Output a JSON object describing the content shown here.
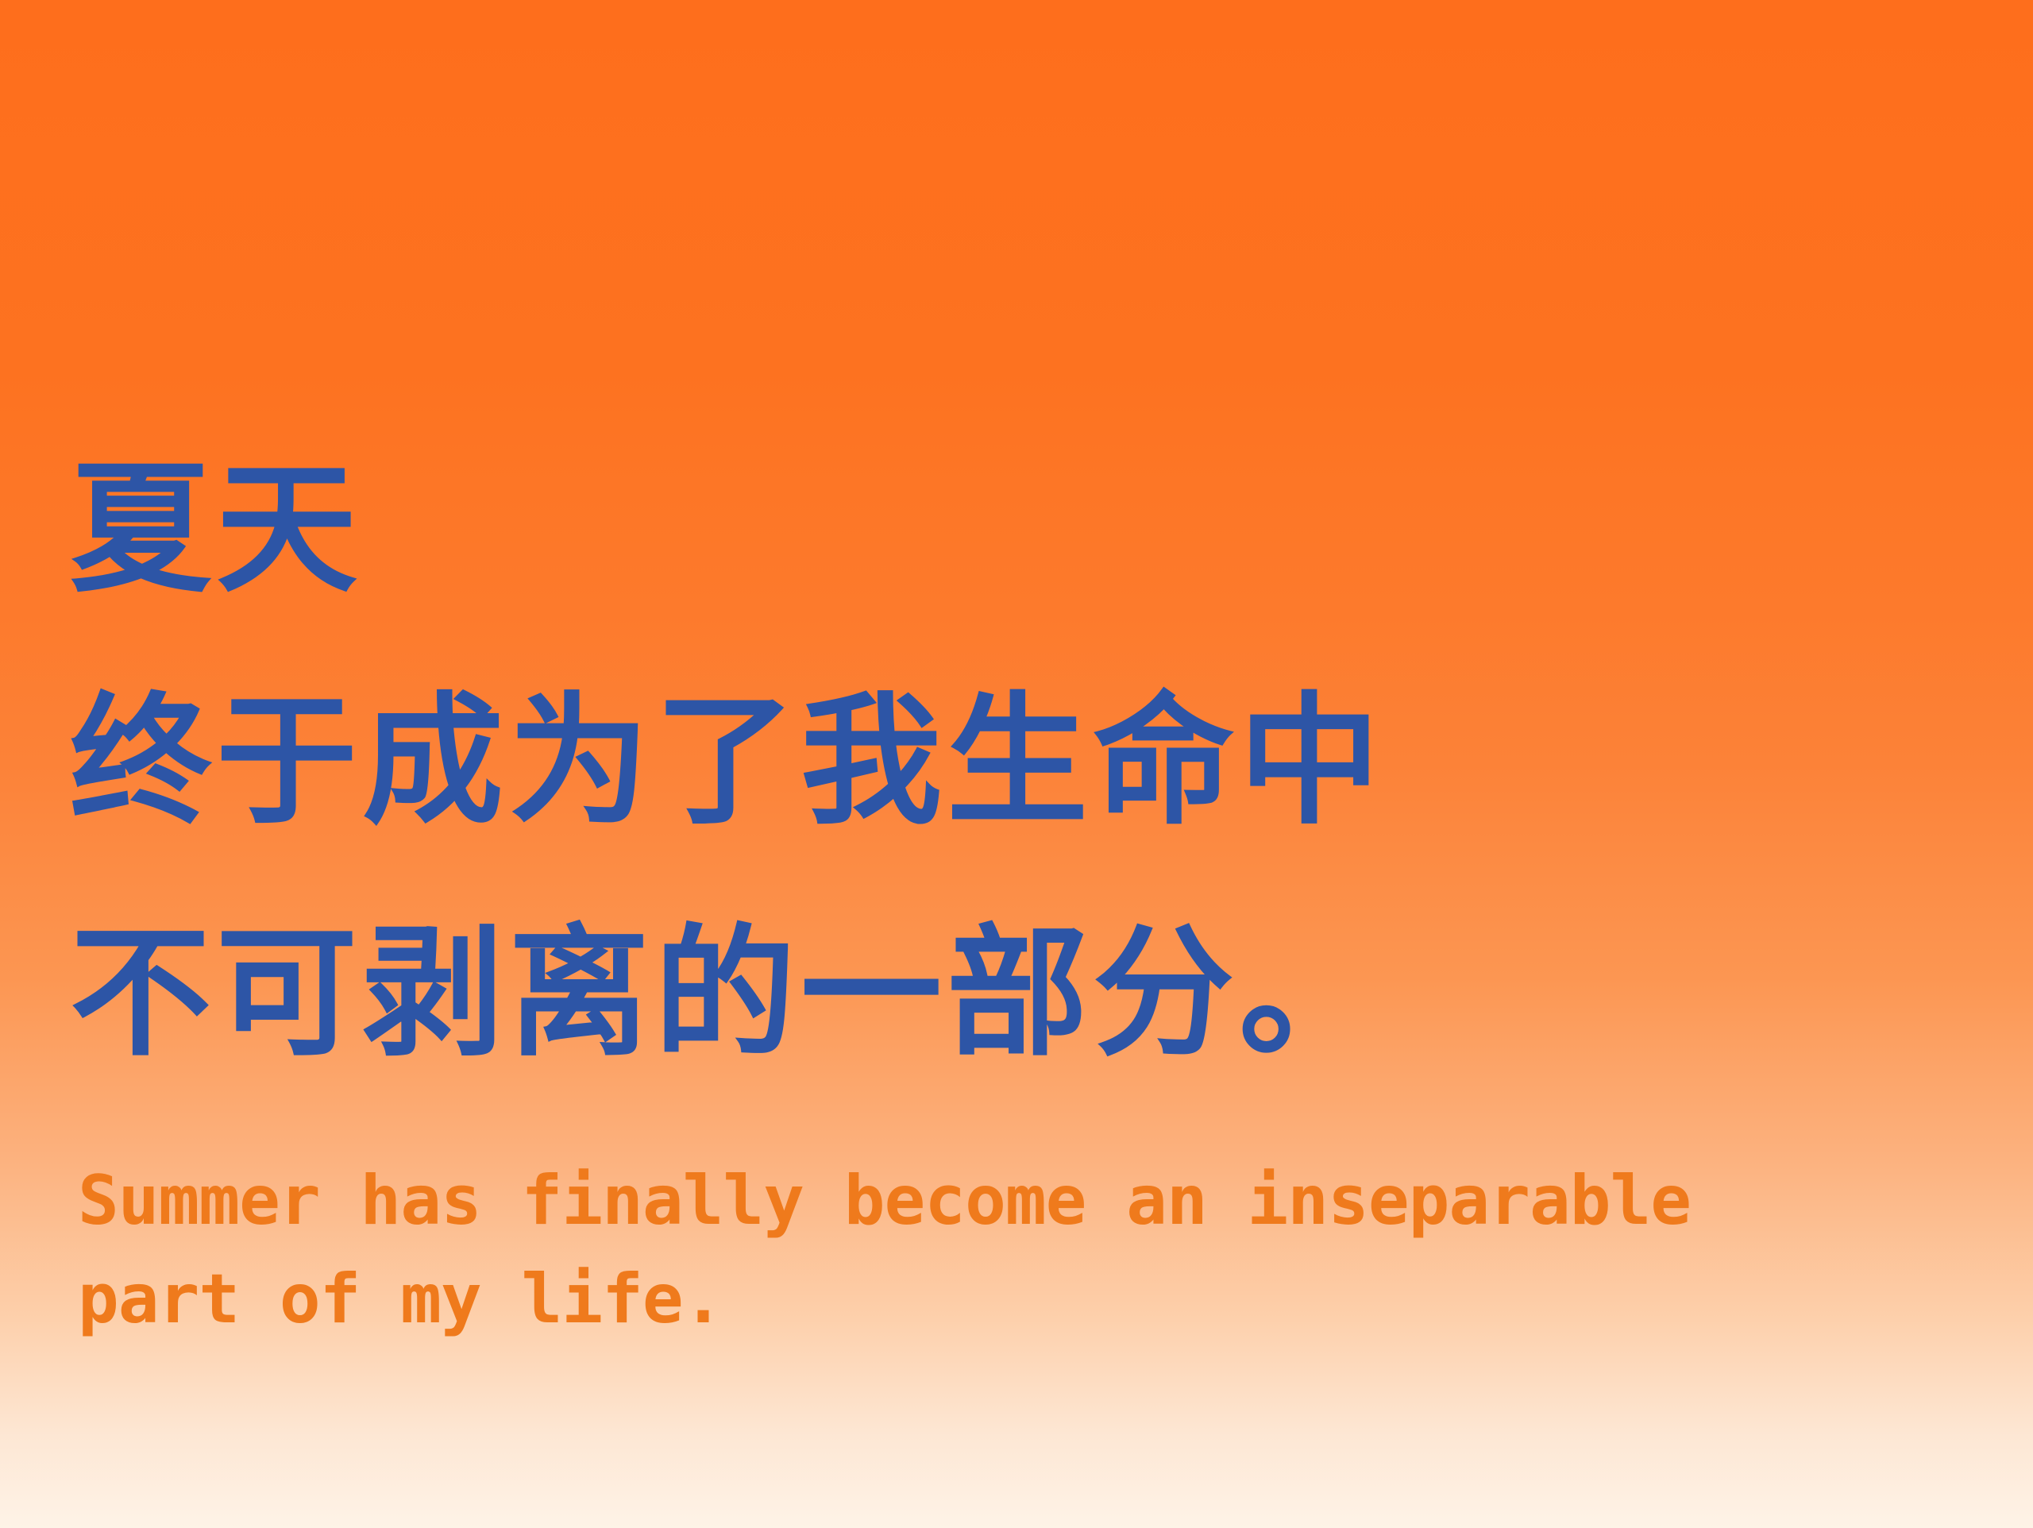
{
  "poster": {
    "chinese_lines": [
      "夏天",
      "终于成为了我生命中",
      "不可剥离的一部分。"
    ],
    "english_lines": [
      "Summer has finally become an inseparable",
      "part of my life."
    ]
  },
  "colors": {
    "background_top": "#fe6e1c",
    "background_bottom": "#fef3e7",
    "chinese_text": "#2d55a6",
    "english_text": "#ef7a1c"
  }
}
